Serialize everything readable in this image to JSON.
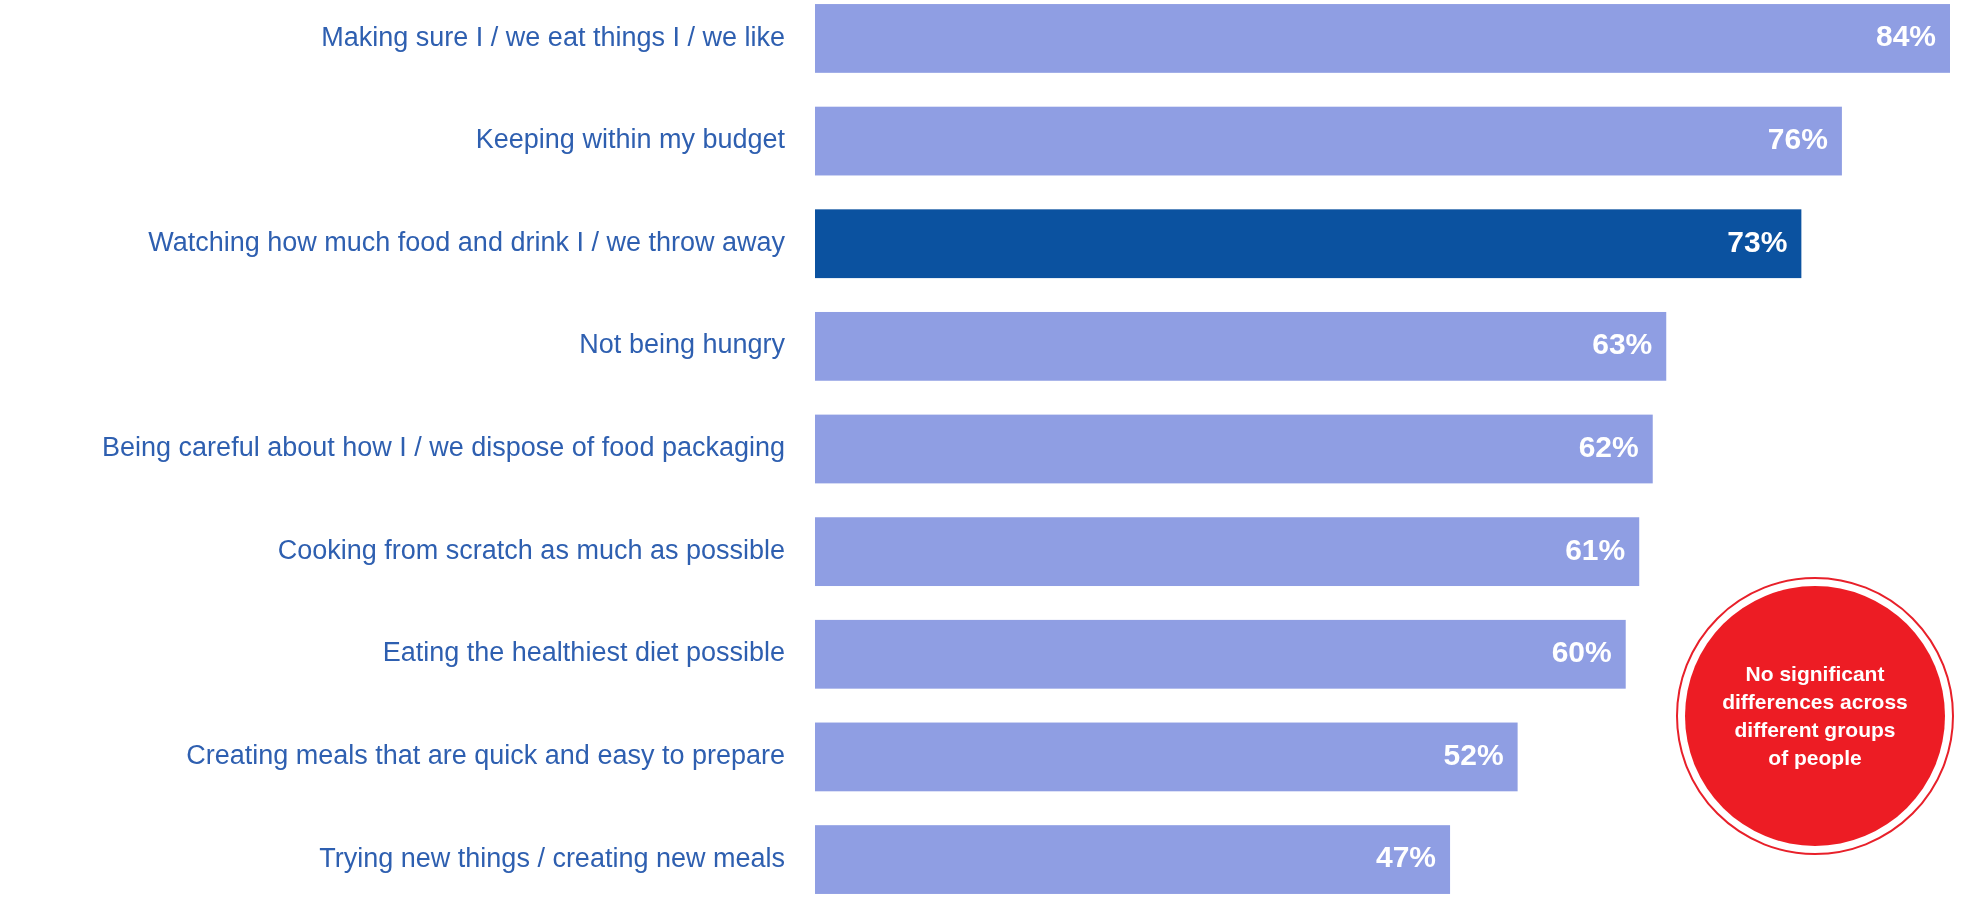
{
  "chart_data": {
    "type": "bar",
    "orientation": "horizontal",
    "categories": [
      "Making sure I / we eat things I / we like",
      "Keeping within my budget",
      "Watching how much food and drink I / we throw away",
      "Not being hungry",
      "Being careful about how I / we dispose of food packaging",
      "Cooking from scratch as much as possible",
      "Eating the healthiest diet possible",
      "Creating meals that are quick and easy to prepare",
      "Trying new things / creating new meals"
    ],
    "values": [
      84,
      76,
      73,
      63,
      62,
      61,
      60,
      52,
      47
    ],
    "colors": [
      "#8f9ee3",
      "#8f9ee3",
      "#0b52a0",
      "#8f9ee3",
      "#8f9ee3",
      "#8f9ee3",
      "#8f9ee3",
      "#8f9ee3",
      "#8f9ee3"
    ],
    "value_labels": [
      "84%",
      "76%",
      "73%",
      "63%",
      "62%",
      "61%",
      "60%",
      "52%",
      "47%"
    ],
    "annotations": [
      "No significant differences across different groups of people"
    ]
  }
}
